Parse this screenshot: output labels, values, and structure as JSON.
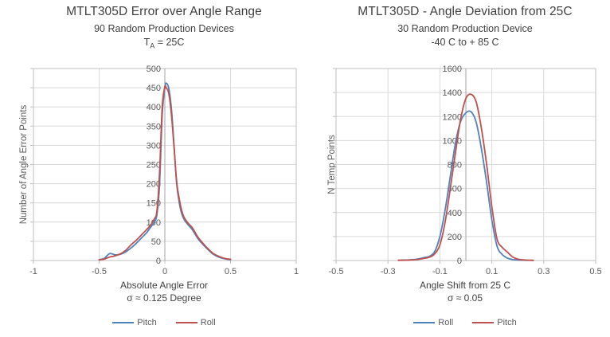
{
  "colors": {
    "background": "#FFFFFF",
    "gridline": "#D9D9D9",
    "plot_border": "#BFBFBF",
    "axis_line": "#A6A6A6",
    "title_text": "#404040",
    "tick_text": "#595959",
    "series_blue": "#4F81BD",
    "series_red": "#C0504D"
  },
  "chart_data": [
    {
      "type": "line",
      "title": "MTLT305D Error over Angle Range",
      "subtitle": "90 Random Production Devices",
      "condition": {
        "prefix": "T",
        "sub": "A",
        "rest": " = 25C"
      },
      "ylabel": "Number of Angle Error Points",
      "xlabel_line1": "Absolute Angle Error",
      "xlabel_line2": "σ ≈ 0.125 Degree",
      "xlim": [
        -1,
        1
      ],
      "ylim": [
        0,
        500
      ],
      "xticks": [
        -1,
        -0.5,
        0,
        0.5,
        1
      ],
      "xtick_labels": [
        "-1",
        "-0.5",
        "0",
        "0.5",
        "1"
      ],
      "yticks": [
        0,
        50,
        100,
        150,
        200,
        250,
        300,
        350,
        400,
        450,
        500
      ],
      "ytick_labels": [
        "0",
        "50",
        "100",
        "150",
        "200",
        "250",
        "300",
        "350",
        "400",
        "450",
        "500"
      ],
      "grid": true,
      "legend_position": "bottom",
      "series": [
        {
          "name": "Pitch",
          "color": "#4F81BD",
          "x": [
            -0.5,
            -0.46,
            -0.42,
            -0.38,
            -0.34,
            -0.3,
            -0.26,
            -0.22,
            -0.18,
            -0.14,
            -0.11,
            -0.08,
            -0.06,
            -0.04,
            -0.02,
            0.0,
            0.01,
            0.03,
            0.05,
            0.07,
            0.09,
            0.11,
            0.13,
            0.15,
            0.18,
            0.21,
            0.25,
            0.29,
            0.33,
            0.37,
            0.41,
            0.45,
            0.5
          ],
          "y": [
            2,
            6,
            18,
            15,
            16,
            22,
            32,
            44,
            58,
            72,
            86,
            100,
            120,
            200,
            380,
            450,
            462,
            448,
            395,
            300,
            200,
            150,
            120,
            105,
            92,
            80,
            58,
            42,
            28,
            16,
            9,
            5,
            2
          ]
        },
        {
          "name": "Roll",
          "color": "#C0504D",
          "x": [
            -0.5,
            -0.46,
            -0.42,
            -0.38,
            -0.34,
            -0.3,
            -0.26,
            -0.22,
            -0.18,
            -0.14,
            -0.11,
            -0.08,
            -0.06,
            -0.04,
            -0.02,
            0.0,
            0.01,
            0.03,
            0.05,
            0.07,
            0.09,
            0.11,
            0.13,
            0.15,
            0.18,
            0.21,
            0.25,
            0.29,
            0.33,
            0.37,
            0.41,
            0.45,
            0.5
          ],
          "y": [
            2,
            4,
            9,
            12,
            17,
            26,
            40,
            52,
            66,
            80,
            92,
            108,
            130,
            230,
            400,
            452,
            450,
            435,
            380,
            295,
            205,
            160,
            128,
            110,
            96,
            85,
            62,
            45,
            30,
            18,
            11,
            6,
            3
          ]
        }
      ]
    },
    {
      "type": "line",
      "title": "MTLT305D - Angle Deviation from 25C",
      "subtitle": "30 Random Production Device",
      "condition": {
        "prefix": "-40 C to + 85 C",
        "sub": "",
        "rest": ""
      },
      "ylabel": "N Temp Points",
      "xlabel_line1": "Angle Shift from 25 C",
      "xlabel_line2": "σ ≈ 0.05",
      "xlim": [
        -0.5,
        0.5
      ],
      "ylim": [
        0,
        1600
      ],
      "xticks": [
        -0.5,
        -0.3,
        -0.1,
        0.1,
        0.3,
        0.5
      ],
      "xtick_labels": [
        "-0.5",
        "-0.3",
        "-0.1",
        "0.1",
        "0.3",
        "0.5"
      ],
      "yticks": [
        0,
        200,
        400,
        600,
        800,
        1000,
        1200,
        1400,
        1600
      ],
      "ytick_labels": [
        "0",
        "200",
        "400",
        "600",
        "800",
        "1000",
        "1200",
        "1400",
        "1600"
      ],
      "grid": true,
      "legend_position": "bottom",
      "series": [
        {
          "name": "Roll",
          "color": "#4F81BD",
          "x": [
            -0.26,
            -0.23,
            -0.2,
            -0.18,
            -0.16,
            -0.14,
            -0.12,
            -0.1,
            -0.08,
            -0.06,
            -0.04,
            -0.02,
            0.0,
            0.02,
            0.04,
            0.06,
            0.08,
            0.1,
            0.12,
            0.14,
            0.16,
            0.18,
            0.2,
            0.23,
            0.26
          ],
          "y": [
            2,
            4,
            8,
            15,
            25,
            35,
            75,
            200,
            420,
            700,
            980,
            1160,
            1230,
            1240,
            1150,
            930,
            650,
            340,
            120,
            50,
            20,
            8,
            4,
            2,
            1
          ]
        },
        {
          "name": "Pitch",
          "color": "#C0504D",
          "x": [
            -0.26,
            -0.23,
            -0.2,
            -0.18,
            -0.16,
            -0.14,
            -0.12,
            -0.1,
            -0.08,
            -0.06,
            -0.04,
            -0.02,
            0.0,
            0.02,
            0.04,
            0.06,
            0.08,
            0.1,
            0.12,
            0.14,
            0.16,
            0.18,
            0.2,
            0.23,
            0.26
          ],
          "y": [
            2,
            3,
            6,
            10,
            18,
            28,
            55,
            130,
            320,
            600,
            900,
            1180,
            1350,
            1385,
            1320,
            1100,
            800,
            450,
            180,
            110,
            70,
            30,
            12,
            4,
            2
          ]
        }
      ]
    }
  ]
}
